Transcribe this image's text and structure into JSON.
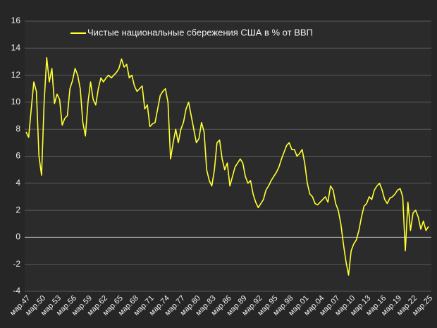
{
  "chart_data": {
    "type": "line",
    "series": [
      {
        "name": "Чистые национальные сбережения США в % от ВВП",
        "color": "#ffff33",
        "values": [
          7.8,
          7.4,
          9.5,
          11.5,
          10.8,
          6.0,
          4.6,
          10.0,
          13.3,
          11.5,
          12.5,
          9.9,
          10.6,
          10.2,
          8.3,
          8.8,
          9.0,
          11.0,
          11.6,
          12.5,
          12.0,
          11.0,
          8.5,
          7.5,
          10.0,
          11.5,
          10.2,
          9.8,
          11.0,
          11.8,
          11.5,
          11.8,
          12.0,
          11.8,
          12.0,
          12.2,
          12.5,
          13.2,
          12.6,
          12.8,
          11.8,
          12.0,
          11.2,
          10.8,
          11.0,
          11.2,
          9.5,
          9.8,
          8.2,
          8.4,
          8.5,
          9.5,
          10.5,
          10.8,
          11.0,
          10.0,
          5.8,
          7.0,
          8.0,
          7.0,
          8.0,
          8.5,
          9.5,
          10.0,
          9.0,
          8.0,
          7.0,
          7.3,
          8.5,
          7.8,
          5.0,
          4.2,
          3.8,
          5.0,
          7.0,
          7.2,
          5.8,
          5.0,
          5.5,
          3.8,
          4.5,
          5.2,
          5.5,
          5.8,
          5.5,
          4.5,
          4.0,
          4.2,
          3.2,
          2.6,
          2.2,
          2.5,
          2.8,
          3.5,
          3.8,
          4.2,
          4.5,
          4.8,
          5.2,
          5.8,
          6.3,
          6.8,
          7.0,
          6.5,
          6.5,
          6.0,
          6.2,
          6.5,
          5.5,
          4.0,
          3.2,
          3.0,
          2.5,
          2.4,
          2.6,
          2.8,
          3.0,
          2.6,
          3.8,
          3.5,
          2.5,
          2.0,
          1.0,
          -0.5,
          -1.8,
          -2.8,
          -1.0,
          -0.5,
          -0.2,
          0.5,
          1.5,
          2.3,
          2.5,
          3.0,
          2.8,
          3.5,
          3.8,
          4.0,
          3.5,
          2.8,
          2.5,
          2.9,
          3.0,
          3.2,
          3.5,
          3.6,
          3.0,
          -1.0,
          2.6,
          0.5,
          1.8,
          2.0,
          1.5,
          0.6,
          1.2,
          0.5,
          0.8
        ]
      }
    ],
    "categories": [
      "мар.47",
      null,
      null,
      null,
      null,
      null,
      "мар.50",
      null,
      null,
      null,
      null,
      null,
      "мар.53",
      null,
      null,
      null,
      null,
      null,
      "мар.56",
      null,
      null,
      null,
      null,
      null,
      "мар.59",
      null,
      null,
      null,
      null,
      null,
      "мар.62",
      null,
      null,
      null,
      null,
      null,
      "мар.65",
      null,
      null,
      null,
      null,
      null,
      "мар.68",
      null,
      null,
      null,
      null,
      null,
      "мар.71",
      null,
      null,
      null,
      null,
      null,
      "мар.74",
      null,
      null,
      null,
      null,
      null,
      "мар.77",
      null,
      null,
      null,
      null,
      null,
      "мар.80",
      null,
      null,
      null,
      null,
      null,
      "мар.83",
      null,
      null,
      null,
      null,
      null,
      "мар.86",
      null,
      null,
      null,
      null,
      null,
      "мар.89",
      null,
      null,
      null,
      null,
      null,
      "мар.92",
      null,
      null,
      null,
      null,
      null,
      "мар.95",
      null,
      null,
      null,
      null,
      null,
      "мар.98",
      null,
      null,
      null,
      null,
      null,
      "мар.01",
      null,
      null,
      null,
      null,
      null,
      "мар.04",
      null,
      null,
      null,
      null,
      null,
      "мар.07",
      null,
      null,
      null,
      null,
      null,
      "мар.10",
      null,
      null,
      null,
      null,
      null,
      "мар.13",
      null,
      null,
      null,
      null,
      null,
      "мар.16",
      null,
      null,
      null,
      null,
      null,
      "мар.19",
      null,
      null,
      null,
      null,
      null,
      "мар.22",
      null,
      null,
      null,
      null,
      null,
      "мар.25"
    ],
    "ylim": [
      -4,
      16
    ],
    "yticks": [
      -4,
      -2,
      0,
      2,
      4,
      6,
      8,
      10,
      12,
      14,
      16
    ],
    "grid": true,
    "legend": "top"
  }
}
